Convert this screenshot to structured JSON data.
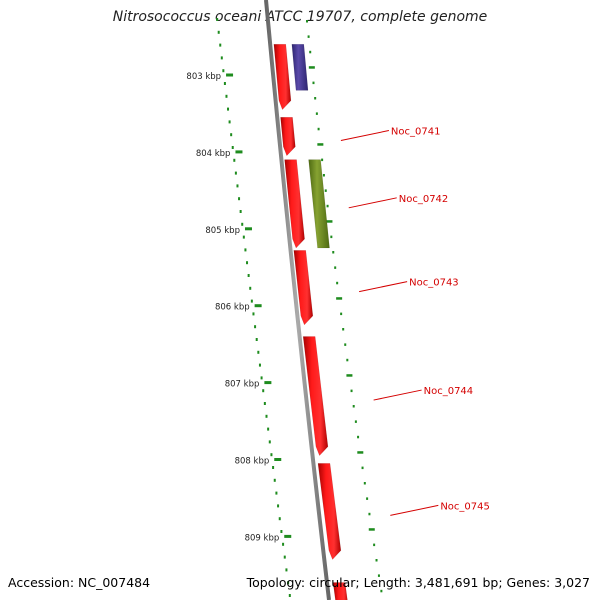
{
  "title": "Nitrosococcus oceani ATCC 19707, complete genome",
  "footer": {
    "accession": "Accession: NC_007484",
    "summary": "Topology: circular; Length: 3,481,691 bp; Genes: 3,027"
  },
  "colors": {
    "forward_gene": "#ff0000",
    "reverse_gene": "#4b3c96",
    "other_gene": "#6e8c1e",
    "backbone": "#8c8c8c",
    "tick": "#1e8c1e",
    "label": "#d40000"
  },
  "ruler": [
    {
      "kbp": 803,
      "label": "803 kbp"
    },
    {
      "kbp": 804,
      "label": "804 kbp"
    },
    {
      "kbp": 805,
      "label": "805 kbp"
    },
    {
      "kbp": 806,
      "label": "806 kbp"
    },
    {
      "kbp": 807,
      "label": "807 kbp"
    },
    {
      "kbp": 808,
      "label": "808 kbp"
    },
    {
      "kbp": 809,
      "label": "809 kbp"
    }
  ],
  "genes": [
    {
      "name": "Noc_0741",
      "track": "forward",
      "start_kbp": 803.55,
      "end_kbp": 804.05,
      "label": "Noc_0741"
    },
    {
      "name": "Noc_0742",
      "track": "forward",
      "start_kbp": 804.1,
      "end_kbp": 805.25,
      "label": "Noc_0742"
    },
    {
      "name": "Noc_0743",
      "track": "forward",
      "start_kbp": 805.28,
      "end_kbp": 806.25,
      "label": "Noc_0743"
    },
    {
      "name": "Noc_0744",
      "track": "forward",
      "start_kbp": 806.4,
      "end_kbp": 807.95,
      "label": "Noc_0744"
    },
    {
      "name": "Noc_0745",
      "track": "forward",
      "start_kbp": 808.05,
      "end_kbp": 809.3,
      "label": "Noc_0745"
    },
    {
      "name": "gene-top-forward",
      "track": "forward",
      "start_kbp": 802.6,
      "end_kbp": 803.45,
      "label": ""
    },
    {
      "name": "gene-top-reverse",
      "track": "reverse",
      "start_kbp": 802.6,
      "end_kbp": 803.2,
      "label": ""
    },
    {
      "name": "gene-olive",
      "track": "other",
      "start_kbp": 804.1,
      "end_kbp": 805.25,
      "label": ""
    },
    {
      "name": "gene-bottom",
      "track": "forward",
      "start_kbp": 809.6,
      "end_kbp": 810.0,
      "label": ""
    }
  ]
}
